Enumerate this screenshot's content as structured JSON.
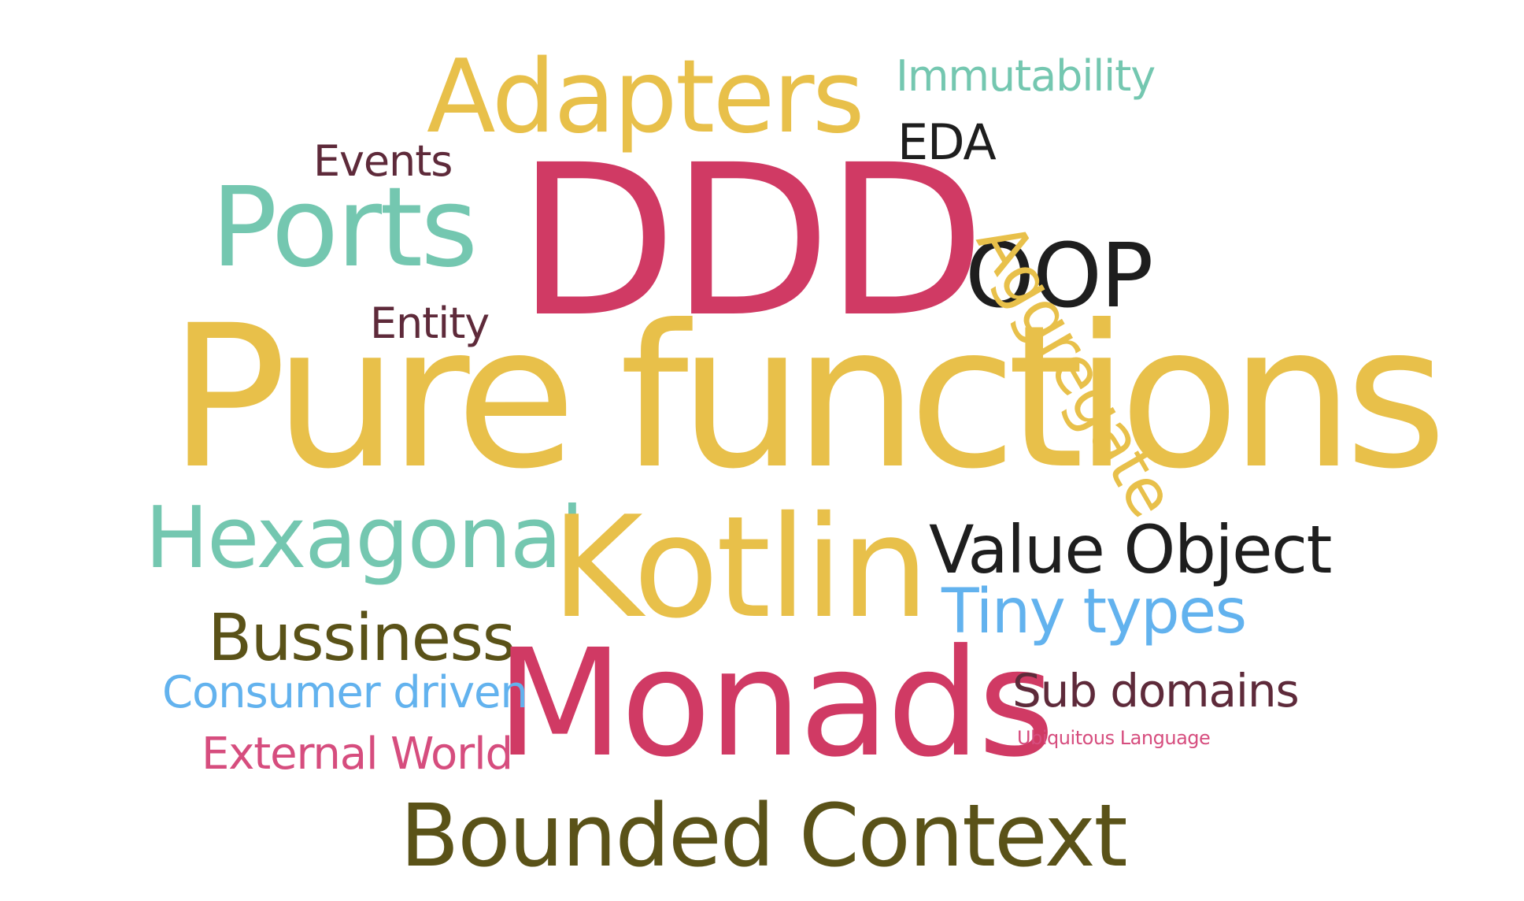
{
  "word_cloud": {
    "words": [
      {
        "id": "pure",
        "text": "Pure functions",
        "color": "#e8c04a"
      },
      {
        "id": "ddd",
        "text": "DDD",
        "color": "#d03a64"
      },
      {
        "id": "adapters",
        "text": "Adapters",
        "color": "#e8c04a"
      },
      {
        "id": "ports",
        "text": "Ports",
        "color": "#74c7b0"
      },
      {
        "id": "immutability",
        "text": "Immutability",
        "color": "#74c7b0"
      },
      {
        "id": "eda",
        "text": "EDA",
        "color": "#1e1e1e"
      },
      {
        "id": "events",
        "text": "Events",
        "color": "#5e2a3a"
      },
      {
        "id": "entity",
        "text": "Entity",
        "color": "#5e2a3a"
      },
      {
        "id": "oop",
        "text": "OOP",
        "color": "#1e1e1e"
      },
      {
        "id": "aggregate",
        "text": "Aggregate",
        "color": "#e8c04a"
      },
      {
        "id": "hexagonal",
        "text": "Hexagonal",
        "color": "#74c7b0"
      },
      {
        "id": "kotlin",
        "text": "Kotlin",
        "color": "#e8c04a"
      },
      {
        "id": "value_object",
        "text": "Value Object",
        "color": "#1e1e1e"
      },
      {
        "id": "tiny_types",
        "text": "Tiny types",
        "color": "#62b2ee"
      },
      {
        "id": "bussiness",
        "text": "Bussiness",
        "color": "#5a5218"
      },
      {
        "id": "monads",
        "text": "Monads",
        "color": "#d03a64"
      },
      {
        "id": "consumer_driven",
        "text": "Consumer driven",
        "color": "#62b2ee"
      },
      {
        "id": "sub_domains",
        "text": "Sub domains",
        "color": "#5e2a3a"
      },
      {
        "id": "ubiquitous_language",
        "text": "Ubiquitous Language",
        "color": "#d64d7e"
      },
      {
        "id": "external_world",
        "text": "External World",
        "color": "#d64d7e"
      },
      {
        "id": "bounded_context",
        "text": "Bounded Context",
        "color": "#5a5218"
      }
    ]
  }
}
